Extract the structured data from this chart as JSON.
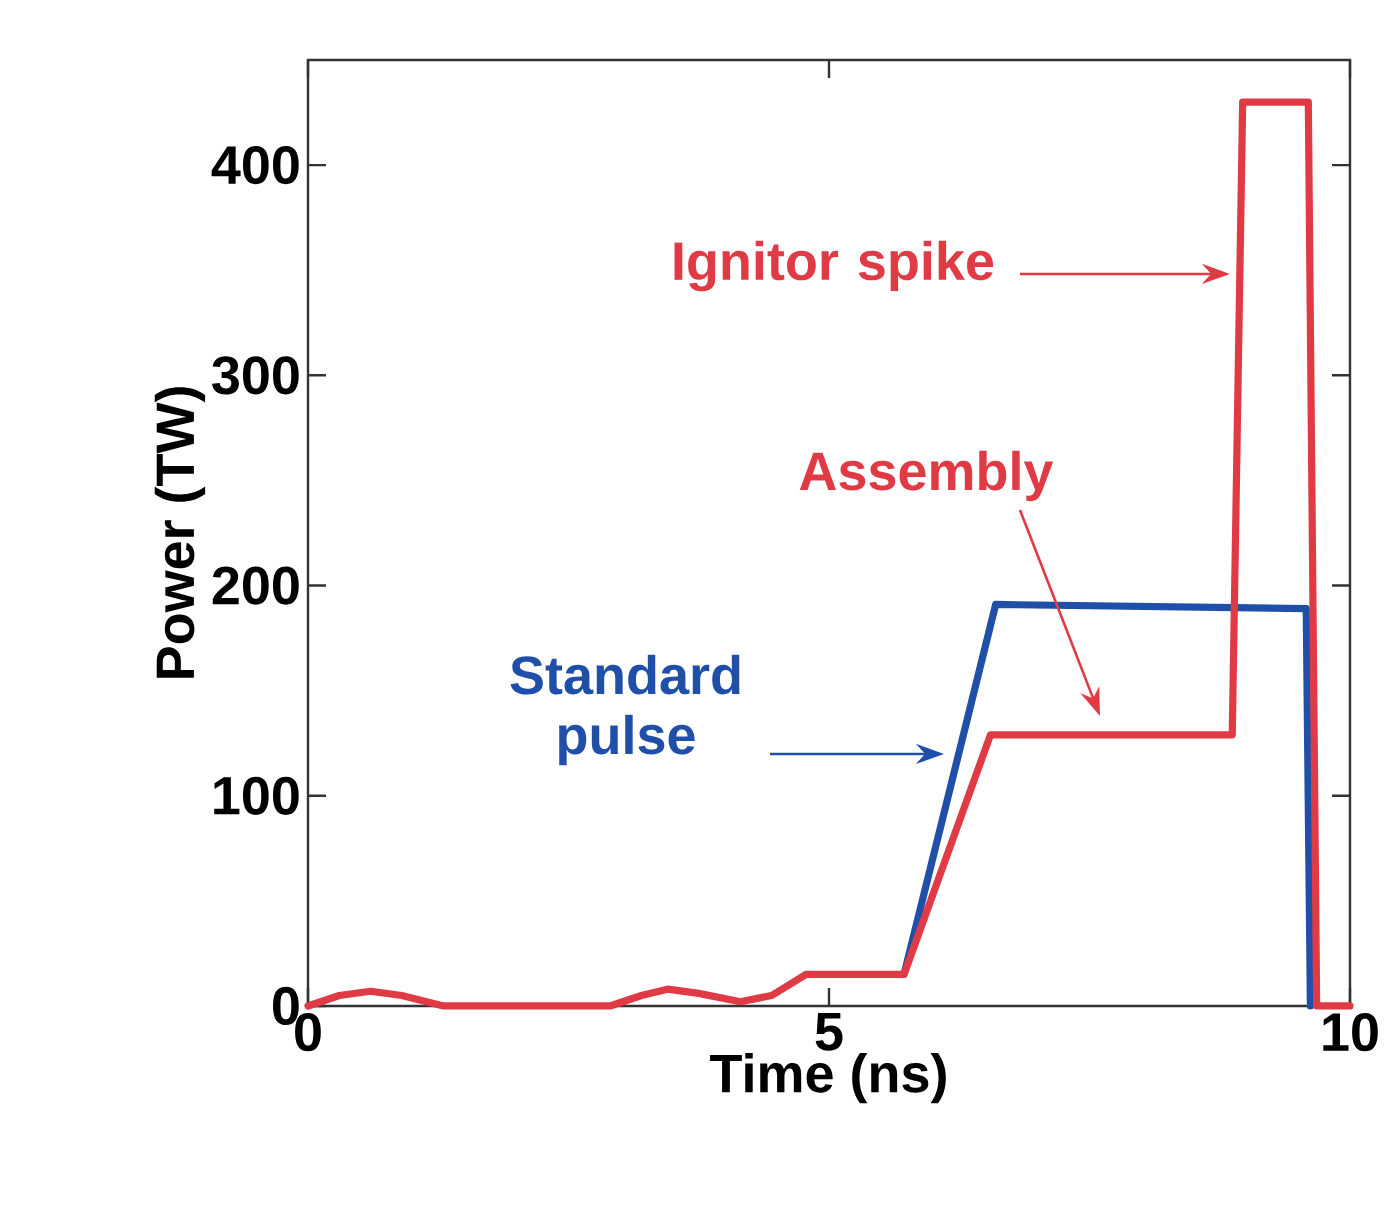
{
  "chart_data": {
    "type": "line",
    "xlabel": "Time (ns)",
    "ylabel": "Power (TW)",
    "xlim": [
      0,
      10
    ],
    "ylim": [
      0,
      450
    ],
    "xticks": [
      0,
      5,
      10
    ],
    "yticks": [
      0,
      100,
      200,
      300,
      400
    ],
    "grid": false,
    "marker": "none",
    "line_style": "solid",
    "series": [
      {
        "color": "#1f4fa8",
        "x": [
          5.72,
          6.6,
          9.58,
          9.62
        ],
        "values": [
          15,
          191,
          189,
          0
        ]
      },
      {
        "color": "#e03a45",
        "x": [
          0,
          0.3,
          0.6,
          0.9,
          1.3,
          2.0,
          2.9,
          3.2,
          3.45,
          3.75,
          4.15,
          4.45,
          4.78,
          5.72,
          6.55,
          8.87,
          8.97,
          9.6,
          9.68,
          10
        ],
        "values": [
          0,
          5,
          7,
          5,
          0,
          0,
          0,
          5,
          8,
          6,
          2,
          5,
          15,
          15,
          129,
          129,
          430,
          430,
          0,
          0
        ]
      }
    ],
    "annotations": [
      "Ignitor spike",
      "Assembly",
      "Standard pulse"
    ]
  }
}
